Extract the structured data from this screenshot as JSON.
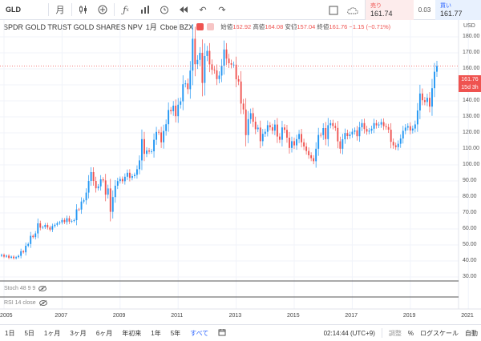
{
  "toolbar": {
    "symbol": "GLD",
    "interval": "月",
    "items": [
      "candles-icon",
      "add-compare-icon",
      "indicators-icon",
      "templates-icon",
      "alert-icon",
      "replay-icon",
      "undo-icon",
      "redo-icon"
    ]
  },
  "quote": {
    "sell_label": "売り",
    "sell_value": "161.74",
    "spread": "0.03",
    "buy_label": "買い",
    "buy_value": "161.77"
  },
  "legend": {
    "title": "SPDR GOLD TRUST GOLD SHARES NPV",
    "interval": "1月",
    "exchange": "Cboe BZX",
    "open_label": "始値",
    "open": "162.92",
    "high_label": "高値",
    "high": "164.08",
    "low_label": "安値",
    "low": "157.04",
    "close_label": "終値",
    "close": "161.76",
    "change": "−1.15 (−0.71%)"
  },
  "price_axis": {
    "currency": "USD",
    "ticks": [
      "180.00",
      "170.00",
      "160.00",
      "150.00",
      "140.00",
      "130.00",
      "120.00",
      "110.00",
      "100.00",
      "90.00",
      "80.00",
      "70.00",
      "60.00",
      "50.00",
      "40.00",
      "30.00"
    ],
    "current_price": "161.76",
    "countdown": "15d 3h"
  },
  "indicators": [
    {
      "label": "Stoch 48 9 9"
    },
    {
      "label": "RSI 14 close"
    }
  ],
  "time_axis": {
    "labels": [
      "2005",
      "2007",
      "2009",
      "2011",
      "2013",
      "2015",
      "2017",
      "2019",
      "2021"
    ]
  },
  "bottom_bar": {
    "ranges": [
      "1日",
      "5日",
      "1ヶ月",
      "3ヶ月",
      "6ヶ月",
      "年初来",
      "1年",
      "5年",
      "すべて"
    ],
    "active": "すべて",
    "clock": "02:14:44 (UTC+9)",
    "adj_label": "調整",
    "percent_label": "%",
    "log_label": "ログスケール",
    "auto_label": "自動"
  },
  "chart_data": {
    "type": "candlestick",
    "title": "SPDR GOLD TRUST GOLD SHARES NPV",
    "ylabel": "USD",
    "ylim": [
      28,
      188
    ],
    "x_start": "2004-12",
    "colors": {
      "up": "#2196f3",
      "down": "#ef5350"
    },
    "monthly_close": [
      43.8,
      42.7,
      43.3,
      42.0,
      42.7,
      41.7,
      42.4,
      43.2,
      46.1,
      45.4,
      49.5,
      50.6,
      55.7,
      54.9,
      57.2,
      63.5,
      60.8,
      61.2,
      62.5,
      60.9,
      59.6,
      61.8,
      62.6,
      63.6,
      64.1,
      65.6,
      64.3,
      66.7,
      64.6,
      65.0,
      65.5,
      72.2,
      72.1,
      77.1,
      77.9,
      82.7,
      90.0,
      95.5,
      90.0,
      85.4,
      86.6,
      91.0,
      90.3,
      81.4,
      85.3,
      70.7,
      79.9,
      87.0,
      89.9,
      91.2,
      89.8,
      92.6,
      95.1,
      91.9,
      93.0,
      93.8,
      97.3,
      102.8,
      116.1,
      106.9,
      109.0,
      108.3,
      108.5,
      115.7,
      120.6,
      120.3,
      114.1,
      121.2,
      125.4,
      134.3,
      133.5,
      137.0,
      130.4,
      137.6,
      139.7,
      150.4,
      150.9,
      147.3,
      158.9,
      178.8,
      162.9,
      165.6,
      170.0,
      151.2,
      168.0,
      171.2,
      162.8,
      159.4,
      159.0,
      153.6,
      155.8,
      162.0,
      172.1,
      166.4,
      163.5,
      162.6,
      162.6,
      153.5,
      152.1,
      138.3,
      134.6,
      118.6,
      128.6,
      132.3,
      127.0,
      122.3,
      123.3,
      114.8,
      119.4,
      120.7,
      124.8,
      123.5,
      121.4,
      125.2,
      117.7,
      115.7,
      123.4,
      121.9,
      117.0,
      110.6,
      114.8,
      112.2,
      116.1,
      119.3,
      114.1,
      111.5,
      108.7,
      106.0,
      104.2,
      102.3,
      110.1,
      118.7,
      118.6,
      123.0,
      116.1,
      124.8,
      126.1,
      124.3,
      123.1,
      114.7,
      110.1,
      116.0,
      119.9,
      118.0,
      119.0,
      120.7,
      121.6,
      117.9,
      123.5,
      126.1,
      122.4,
      120.8,
      121.4,
      122.6,
      126.1,
      124.7,
      125.2,
      126.7,
      124.2,
      123.6,
      122.0,
      114.4,
      112.2,
      111.1,
      113.2,
      116.5,
      121.3,
      123.3,
      124.2,
      121.5,
      122.7,
      125.3,
      134.0,
      144.6,
      140.4,
      139.3,
      141.9,
      136.4,
      147.9,
      158.2,
      161.8
    ]
  }
}
